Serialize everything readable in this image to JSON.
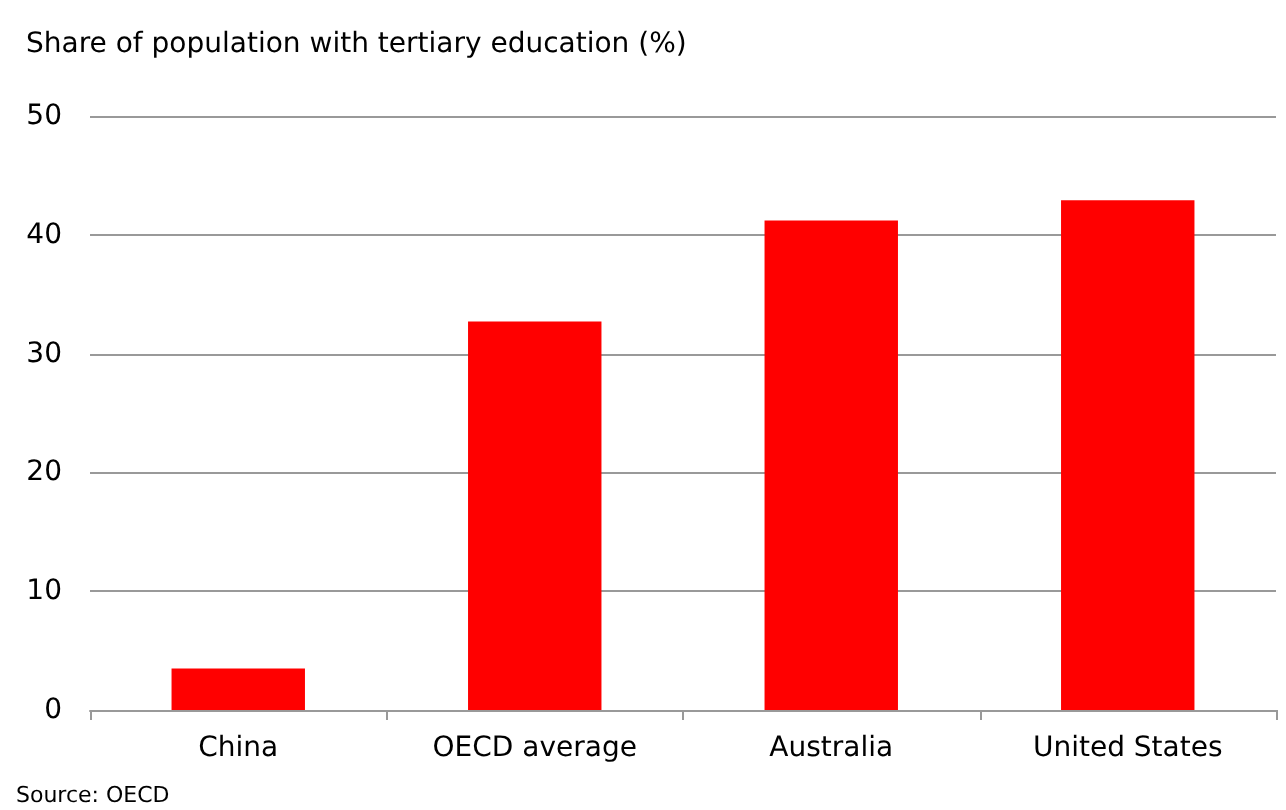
{
  "chart_data": {
    "type": "bar",
    "title": "Share of population with tertiary education (%)",
    "categories": [
      "China",
      "OECD average",
      "Australia",
      "United States"
    ],
    "values": [
      3.5,
      32.7,
      41.2,
      42.9
    ],
    "color": "#ff0000",
    "ylim": [
      0,
      50
    ],
    "yticks": [
      0,
      10,
      20,
      30,
      40,
      50
    ],
    "grid": "y",
    "annotations": [
      "Source: OECD"
    ]
  }
}
